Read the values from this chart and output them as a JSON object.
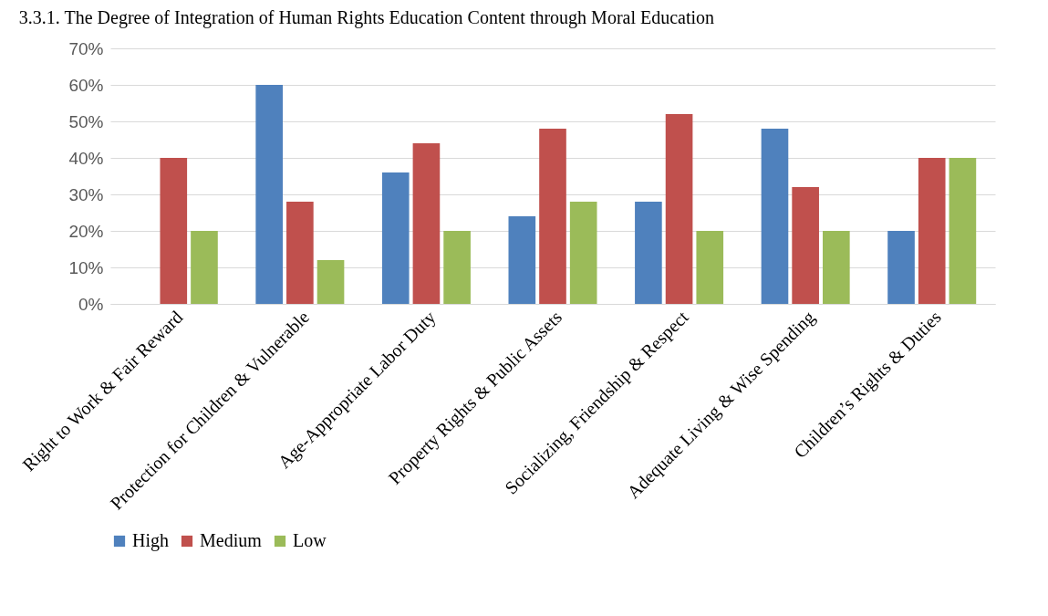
{
  "chart_data": {
    "type": "bar",
    "title": "3.3.1. The Degree of Integration of Human Rights Education Content through Moral Education",
    "categories": [
      "Right to Work & Fair Reward",
      "Protection for Children & Vulnerable",
      "Age-Appropriate Labor Duty",
      "Property Rights & Public Assets",
      "Socializing, Friendship & Respect",
      "Adequate Living & Wise Spending",
      "Children’s Rights & Duties"
    ],
    "series": [
      {
        "name": "High",
        "color": "#4f81bd",
        "values": [
          0,
          60,
          36,
          24,
          28,
          48,
          20
        ]
      },
      {
        "name": "Medium",
        "color": "#c0504d",
        "values": [
          40,
          28,
          44,
          48,
          52,
          32,
          40
        ]
      },
      {
        "name": "Low",
        "color": "#9bbb59",
        "values": [
          20,
          12,
          20,
          28,
          20,
          20,
          40
        ]
      }
    ],
    "ylim": [
      0,
      70
    ],
    "yticks": [
      {
        "value": 0,
        "label": "0%"
      },
      {
        "value": 10,
        "label": "10%"
      },
      {
        "value": 20,
        "label": "20%"
      },
      {
        "value": 30,
        "label": "30%"
      },
      {
        "value": 40,
        "label": "40%"
      },
      {
        "value": 50,
        "label": "50%"
      },
      {
        "value": 60,
        "label": "60%"
      },
      {
        "value": 70,
        "label": "70%"
      }
    ],
    "grid": "y",
    "legend": "bottom"
  }
}
